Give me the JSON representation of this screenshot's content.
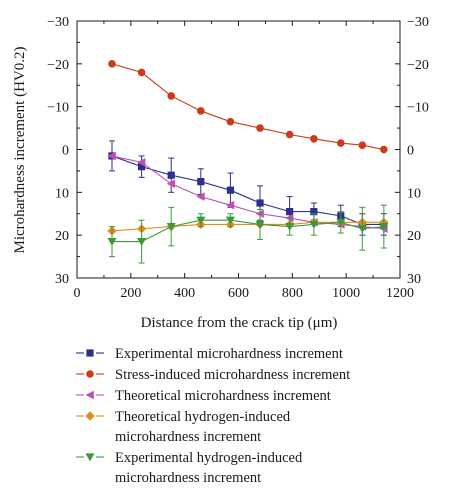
{
  "chart_data": {
    "type": "line",
    "xlabel": "Distance from the crack tip (μm)",
    "ylabel": "Microhardness increment (HV0.2)",
    "xlim": [
      0,
      1200
    ],
    "ylim": [
      -30,
      30
    ],
    "y_reversed": true,
    "x_ticks": [
      0,
      200,
      400,
      600,
      800,
      1000,
      1200
    ],
    "y_ticks": [
      -30,
      -20,
      -10,
      0,
      10,
      20,
      30
    ],
    "y_tick_labels": [
      "−30",
      "−20",
      "−10",
      "0",
      "10",
      "20",
      "30"
    ],
    "grid": false,
    "legend_position": "below",
    "series": [
      {
        "name": "Experimental microhardness increment",
        "color": "#2e2e8c",
        "marker": "square",
        "x": [
          130,
          240,
          350,
          460,
          570,
          680,
          790,
          880,
          980,
          1060,
          1140
        ],
        "y": [
          1.5,
          4.0,
          6.0,
          7.5,
          9.5,
          12.5,
          14.5,
          14.5,
          15.5,
          17.5,
          17.5
        ],
        "yerr": [
          3.5,
          2.5,
          4.0,
          3.0,
          4.0,
          4.0,
          3.5,
          2.0,
          2.5,
          2.5,
          2.5
        ]
      },
      {
        "name": "Stress-induced microhardness increment",
        "color": "#cc3a1a",
        "marker": "circle",
        "x": [
          130,
          240,
          350,
          460,
          570,
          680,
          790,
          880,
          980,
          1060,
          1140
        ],
        "y": [
          -20.0,
          -18.0,
          -12.5,
          -9.0,
          -6.5,
          -5.0,
          -3.5,
          -2.5,
          -1.5,
          -1.0,
          0.0
        ]
      },
      {
        "name": "Theoretical microhardness increment",
        "color": "#c04fb4",
        "marker": "triangle-left",
        "x": [
          130,
          240,
          350,
          460,
          570,
          680,
          790,
          880,
          980,
          1060,
          1140
        ],
        "y": [
          1.5,
          3.0,
          8.0,
          11.0,
          13.0,
          15.0,
          16.0,
          17.0,
          17.5,
          18.0,
          18.5
        ]
      },
      {
        "name": "Theoretical hydrogen-induced microhardness increment",
        "label_lines": [
          "Theoretical hydrogen-induced",
          "microhardness increment"
        ],
        "color": "#e38a1c",
        "marker": "diamond",
        "x": [
          130,
          240,
          350,
          460,
          570,
          680,
          790,
          880,
          980,
          1060,
          1140
        ],
        "y": [
          19.0,
          18.5,
          18.0,
          17.5,
          17.5,
          17.5,
          17.5,
          17.0,
          17.0,
          17.0,
          17.0
        ]
      },
      {
        "name": "Experimental hydrogen-induced microhardness increment",
        "label_lines": [
          "Experimental hydrogen-induced",
          "microhardness increment"
        ],
        "color": "#3a9a3a",
        "marker": "triangle-down",
        "x": [
          130,
          240,
          350,
          460,
          570,
          680,
          790,
          880,
          980,
          1060,
          1140
        ],
        "y": [
          21.5,
          21.5,
          18.0,
          16.5,
          16.5,
          17.5,
          18.0,
          17.5,
          17.0,
          18.5,
          18.0
        ],
        "yerr": [
          3.5,
          5.0,
          4.5,
          1.5,
          1.5,
          3.5,
          2.0,
          2.5,
          2.5,
          5.0,
          5.0
        ]
      }
    ]
  }
}
